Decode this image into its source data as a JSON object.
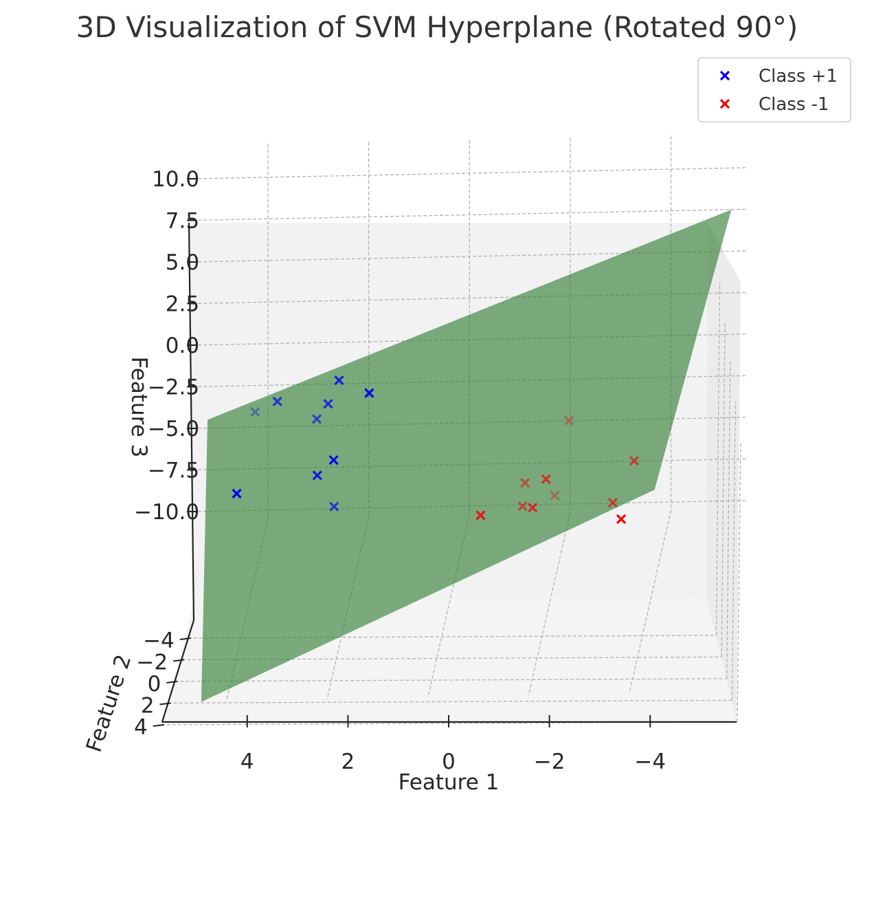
{
  "chart_data": {
    "type": "scatter",
    "projection": "3d",
    "title": "3D Visualization of SVM Hyperplane (Rotated 90°)",
    "xlabel": "Feature 1",
    "ylabel": "Feature 2",
    "zlabel": "Feature 3",
    "xlim": [
      5.5,
      -5.5
    ],
    "ylim": [
      -5,
      5
    ],
    "zlim": [
      -12,
      12
    ],
    "xticks": [
      {
        "v": 4,
        "label": "4"
      },
      {
        "v": 2,
        "label": "2"
      },
      {
        "v": 0,
        "label": "0"
      },
      {
        "v": -2,
        "label": "−2"
      },
      {
        "v": -4,
        "label": "−4"
      }
    ],
    "yticks": [
      {
        "v": -4,
        "label": "−4"
      },
      {
        "v": -2,
        "label": "−2"
      },
      {
        "v": 0,
        "label": "0"
      },
      {
        "v": 2,
        "label": "2"
      },
      {
        "v": 4,
        "label": "4"
      }
    ],
    "zticks": [
      {
        "v": 10,
        "label": "10.0"
      },
      {
        "v": 7.5,
        "label": "7.5"
      },
      {
        "v": 5,
        "label": "5.0"
      },
      {
        "v": 2.5,
        "label": "2.5"
      },
      {
        "v": 0,
        "label": "0.0"
      },
      {
        "v": -2.5,
        "label": "−2.5"
      },
      {
        "v": -5,
        "label": "−5.0"
      },
      {
        "v": -7.5,
        "label": "−7.5"
      },
      {
        "v": -10,
        "label": "−10.0"
      }
    ],
    "legend": {
      "position": "top-right",
      "entries": [
        "Class +1",
        "Class -1"
      ]
    },
    "hyperplane": {
      "color": "#2e7d32",
      "opacity": 0.62,
      "corners": [
        [
          5.2,
          -5,
          -4.5
        ],
        [
          -5.2,
          -5,
          7.5
        ],
        [
          -4.5,
          5,
          0.7
        ],
        [
          4.5,
          5,
          -11.5
        ]
      ]
    },
    "series": [
      {
        "name": "Class +1",
        "color": "#0000ee",
        "marker": "x",
        "points": [
          [
            4.0,
            -1.9,
            -1.0,
            0.35
          ],
          [
            3.6,
            -2.4,
            -0.9,
            0.7
          ],
          [
            2.8,
            -2.2,
            -1.8,
            0.6
          ],
          [
            2.6,
            -2.5,
            -1.2,
            0.75
          ],
          [
            2.4,
            -2.7,
            0.0,
            0.8
          ],
          [
            1.8,
            -2.7,
            -0.8,
            1.0
          ],
          [
            4.2,
            0.1,
            -3.9,
            1.0
          ],
          [
            2.6,
            0.1,
            -2.9,
            0.85
          ],
          [
            2.3,
            -0.2,
            -2.3,
            0.95
          ],
          [
            2.2,
            0.9,
            -4.0,
            0.65
          ]
        ]
      },
      {
        "name": "Class -1",
        "color": "#ee0000",
        "marker": "x",
        "points": [
          [
            -0.7,
            0.8,
            -4.8,
            0.85
          ],
          [
            -1.5,
            -0.2,
            -3.9,
            0.5
          ],
          [
            -1.5,
            0.4,
            -4.7,
            0.55
          ],
          [
            -1.7,
            0.4,
            -4.8,
            0.75
          ],
          [
            -1.9,
            -0.4,
            -3.9,
            0.7
          ],
          [
            -2.1,
            -0.1,
            -4.6,
            0.35
          ],
          [
            -2.2,
            -2.3,
            -2.3,
            0.35
          ],
          [
            -3.5,
            0.9,
            -5.1,
            1.0
          ],
          [
            -3.3,
            0.5,
            -4.5,
            0.65
          ],
          [
            -3.6,
            -1.0,
            -3.5,
            0.6
          ]
        ]
      }
    ]
  }
}
